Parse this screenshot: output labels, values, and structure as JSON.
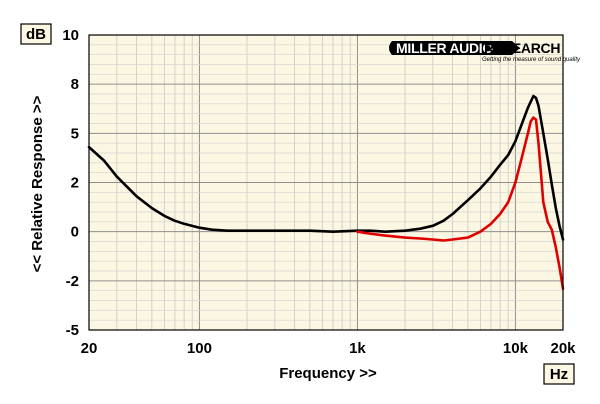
{
  "chart_data": {
    "type": "line",
    "xlabel": "Frequency >>",
    "ylabel": "<< Relative Response >>",
    "x_unit": "Hz",
    "y_unit": "dB",
    "x_scale": "log",
    "xlim": [
      20,
      20000
    ],
    "ylim": [
      -5,
      10
    ],
    "grid": true,
    "x_ticks": [
      {
        "value": 20,
        "label": "20"
      },
      {
        "value": 100,
        "label": "100"
      },
      {
        "value": 1000,
        "label": "1k"
      },
      {
        "value": 10000,
        "label": "10k"
      },
      {
        "value": 20000,
        "label": "20k"
      }
    ],
    "y_ticks": [
      {
        "value": 10,
        "label": "10"
      },
      {
        "value": 7.5,
        "label": "8"
      },
      {
        "value": 5,
        "label": "5"
      },
      {
        "value": 2.5,
        "label": "2"
      },
      {
        "value": 0,
        "label": "0"
      },
      {
        "value": -2.5,
        "label": "-2"
      },
      {
        "value": -5,
        "label": "-5"
      }
    ],
    "series": [
      {
        "color": "#000000",
        "x": [
          20,
          25,
          30,
          40,
          50,
          60,
          70,
          80,
          100,
          120,
          150,
          200,
          300,
          400,
          500,
          700,
          1000,
          1200,
          1500,
          2000,
          2500,
          3000,
          3500,
          4000,
          5000,
          6000,
          7000,
          8000,
          9000,
          10000,
          11000,
          12000,
          13000,
          13500,
          14000,
          15000,
          16000,
          17000,
          18000,
          19000,
          20000
        ],
        "y": [
          4.3,
          3.6,
          2.8,
          1.8,
          1.2,
          0.8,
          0.55,
          0.4,
          0.2,
          0.1,
          0.05,
          0.05,
          0.05,
          0.05,
          0.05,
          0.0,
          0.05,
          0.05,
          0.0,
          0.05,
          0.15,
          0.3,
          0.55,
          0.9,
          1.6,
          2.2,
          2.8,
          3.4,
          3.9,
          4.6,
          5.5,
          6.3,
          6.9,
          6.8,
          6.4,
          5.0,
          3.7,
          2.4,
          1.2,
          0.3,
          -0.4
        ]
      },
      {
        "color": "#e00000",
        "x": [
          1000,
          1200,
          1500,
          2000,
          2500,
          3000,
          3500,
          4000,
          5000,
          6000,
          7000,
          8000,
          9000,
          10000,
          11000,
          12000,
          12500,
          13000,
          13500,
          14000,
          15000,
          16000,
          17000,
          18000,
          19000,
          20000
        ],
        "y": [
          0.0,
          -0.1,
          -0.2,
          -0.3,
          -0.35,
          -0.4,
          -0.45,
          -0.4,
          -0.3,
          0.0,
          0.4,
          0.9,
          1.5,
          2.5,
          3.8,
          5.0,
          5.6,
          5.8,
          5.7,
          4.5,
          1.5,
          0.5,
          0.1,
          -0.8,
          -1.8,
          -2.9
        ]
      }
    ]
  },
  "logo": {
    "left_text": "MILLER AUDIO",
    "right_text": "RESEARCH",
    "tagline": "Getting the measure of sound quality"
  }
}
